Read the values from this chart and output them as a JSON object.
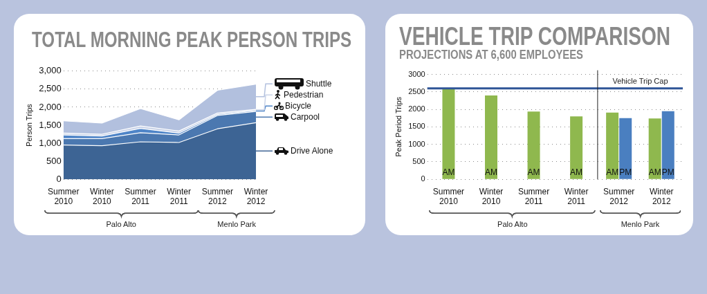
{
  "chart_data": [
    {
      "type": "area",
      "title": "TOTAL MORNING PEAK PERSON TRIPS",
      "ylabel": "Person Trips",
      "categories": [
        "Summer 2010",
        "Winter 2010",
        "Summer 2011",
        "Winter 2011",
        "Summer 2012",
        "Winter 2012"
      ],
      "stacked": true,
      "series": [
        {
          "name": "Drive Alone",
          "color": "#3d6494",
          "values": [
            950,
            930,
            1040,
            1020,
            1400,
            1570
          ]
        },
        {
          "name": "Carpool",
          "color": "#4b78b0",
          "values": [
            180,
            200,
            250,
            210,
            370,
            310
          ]
        },
        {
          "name": "Bicycle",
          "color": "#4f85c8",
          "values": [
            100,
            70,
            120,
            50,
            30,
            30
          ]
        },
        {
          "name": "Pedestrian",
          "color": "#c9d3e8",
          "values": [
            50,
            50,
            70,
            60,
            40,
            30
          ]
        },
        {
          "name": "Shuttle",
          "color": "#b2c0de",
          "values": [
            340,
            310,
            480,
            310,
            630,
            700
          ]
        }
      ],
      "legend": "right",
      "ylim": [
        0,
        3000
      ],
      "yticks": [
        {
          "value": 0,
          "label": "0"
        },
        {
          "value": 500,
          "label": "500"
        },
        {
          "value": 1000,
          "label": "1,000"
        },
        {
          "value": 1500,
          "label": "1,500"
        },
        {
          "value": 2000,
          "label": "2,000"
        },
        {
          "value": 2500,
          "label": "2,500"
        },
        {
          "value": 3000,
          "label": "3,000"
        }
      ],
      "grid": "y",
      "annotations": [
        "Palo Alto",
        "Menlo Park"
      ]
    },
    {
      "type": "bar",
      "title": "VEHICLE TRIP COMPARISON",
      "subtitle": "PROJECTIONS  AT 6,600 EMPLOYEES",
      "ylabel": "Peak Period Trips",
      "categories": [
        "Summer 2010",
        "Winter 2010",
        "Summer 2011",
        "Winter 2011",
        "Summer 2012",
        "Winter 2012"
      ],
      "series": [
        {
          "name": "AM",
          "color": "#8fb84e",
          "values": [
            2600,
            2400,
            1940,
            1800,
            1910,
            1740
          ]
        },
        {
          "name": "PM",
          "color": "#4a7fc0",
          "values": [
            null,
            null,
            null,
            null,
            1750,
            1950
          ]
        }
      ],
      "ylim": [
        0,
        3000
      ],
      "yticks": [
        0,
        500,
        1000,
        1500,
        2000,
        2500,
        3000
      ],
      "grid": "y",
      "ref_lines": [
        {
          "axis": "y",
          "value": 2600,
          "label": "Vehicle Trip Cap",
          "color": "#2f5597"
        },
        {
          "axis": "x",
          "value": "Summer 2012",
          "color": "#222222"
        }
      ],
      "annotations": [
        "Palo Alto",
        "Menlo Park"
      ]
    }
  ]
}
